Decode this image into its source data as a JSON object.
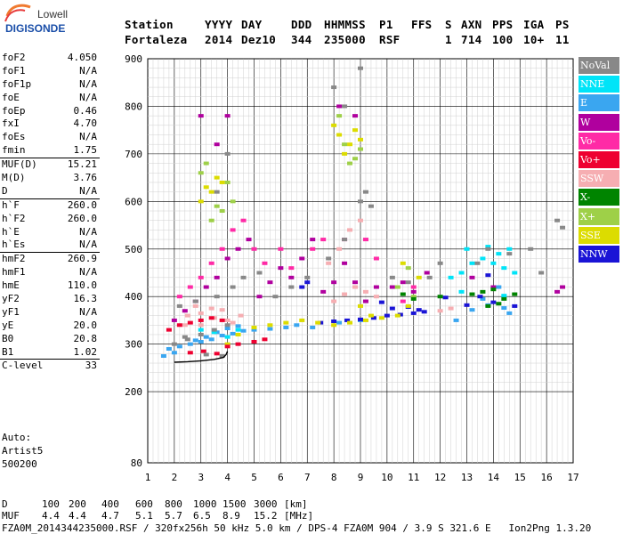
{
  "logo": {
    "brand": "Lowell",
    "product": "DIGISONDE"
  },
  "header": {
    "labels": [
      "Station",
      "YYYY",
      "DAY",
      "DDD",
      "HHMMSS",
      "P1",
      "FFS",
      "S",
      "AXN",
      "PPS",
      "IGA",
      "PS"
    ],
    "values": [
      "Fortaleza",
      "2014",
      "Dez10",
      "344",
      "235000",
      "RSF",
      "",
      "1",
      "714",
      "100",
      "10+",
      "11"
    ]
  },
  "parameters": [
    {
      "name": "foF2",
      "value": "4.050"
    },
    {
      "name": "foF1",
      "value": "N/A"
    },
    {
      "name": "foF1p",
      "value": "N/A"
    },
    {
      "name": "foE",
      "value": "N/A"
    },
    {
      "name": "foEp",
      "value": "0.46"
    },
    {
      "name": "fxI",
      "value": "4.70"
    },
    {
      "name": "foEs",
      "value": "N/A"
    },
    {
      "name": "fmin",
      "value": "1.75"
    },
    {
      "name": "MUF(D)",
      "value": "15.21",
      "sep": true
    },
    {
      "name": "M(D)",
      "value": "3.76"
    },
    {
      "name": "D",
      "value": "N/A"
    },
    {
      "name": "h`F",
      "value": "260.0",
      "sep": true
    },
    {
      "name": "h`F2",
      "value": "260.0"
    },
    {
      "name": "h`E",
      "value": "N/A"
    },
    {
      "name": "h`Es",
      "value": "N/A"
    },
    {
      "name": "hmF2",
      "value": "260.9",
      "sep": true
    },
    {
      "name": "hmF1",
      "value": "N/A"
    },
    {
      "name": "hmE",
      "value": "110.0"
    },
    {
      "name": "yF2",
      "value": "16.3"
    },
    {
      "name": "yF1",
      "value": "N/A"
    },
    {
      "name": "yE",
      "value": "20.0"
    },
    {
      "name": "B0",
      "value": "20.8"
    },
    {
      "name": "B1",
      "value": "1.02"
    },
    {
      "name": "C-level",
      "value": "33",
      "sep": true
    }
  ],
  "auto": {
    "label": "Auto:",
    "software": "Artist5",
    "version": "500200"
  },
  "legend": [
    {
      "label": "NoVal",
      "color": "#888888"
    },
    {
      "label": "NNE",
      "color": "#00e4f8"
    },
    {
      "label": "E",
      "color": "#3aa6f0"
    },
    {
      "label": "W",
      "color": "#b0009e"
    },
    {
      "label": "Vo-",
      "color": "#ff2aa6"
    },
    {
      "label": "Vo+",
      "color": "#ee0030"
    },
    {
      "label": "SSW",
      "color": "#f6aeb2"
    },
    {
      "label": "X-",
      "color": "#008400"
    },
    {
      "label": "X+",
      "color": "#9ed048"
    },
    {
      "label": "SSE",
      "color": "#dcdc00"
    },
    {
      "label": "NNW",
      "color": "#1a14d6"
    }
  ],
  "footer": {
    "d_label": "D",
    "d_values": [
      "100",
      "200",
      "400",
      "600",
      "800",
      "1000",
      "1500",
      "3000"
    ],
    "d_unit": "[km]",
    "muf_label": "MUF",
    "muf_values": [
      "4.4",
      "4.4",
      "4.7",
      "5.1",
      "5.7",
      "6.5",
      "8.9",
      "15.2"
    ],
    "muf_unit": "[MHz]",
    "info": "FZA0M_2014344235000.RSF / 320fx256h 50 kHz 5.0 km / DPS-4 FZA0M 904 / 3.9 S 321.6 E   Ion2Png 1.3.20"
  },
  "chart_data": {
    "type": "scatter",
    "x_ticks": [
      1,
      2,
      3,
      4,
      5,
      6,
      7,
      8,
      9,
      10,
      11,
      12,
      13,
      14,
      15,
      16,
      17
    ],
    "y_ticks": [
      80,
      200,
      300,
      400,
      500,
      600,
      700,
      800,
      900
    ],
    "xlim": [
      1,
      17
    ],
    "y_scale": [
      [
        80,
        0
      ],
      [
        200,
        0.176
      ],
      [
        900,
        1
      ]
    ],
    "grid": true,
    "trace": {
      "freq": [
        2.0,
        2.5,
        3.0,
        3.5,
        3.85,
        3.95,
        4.0
      ],
      "height": [
        262,
        263,
        265,
        268,
        272,
        278,
        285
      ]
    },
    "series": [
      {
        "class": "E",
        "points": [
          [
            1.8,
            290
          ],
          [
            2.2,
            295
          ],
          [
            2.6,
            300
          ],
          [
            3.0,
            305
          ],
          [
            3.4,
            310
          ],
          [
            3.8,
            318
          ],
          [
            4.2,
            322
          ],
          [
            4.6,
            328
          ],
          [
            5.0,
            330
          ],
          [
            5.6,
            332
          ],
          [
            6.2,
            335
          ],
          [
            6.6,
            340
          ],
          [
            1.6,
            275
          ],
          [
            2.0,
            282
          ],
          [
            2.8,
            308
          ],
          [
            3.2,
            315
          ],
          [
            3.6,
            325
          ],
          [
            4.0,
            333
          ],
          [
            4.4,
            338
          ],
          [
            12.6,
            350
          ],
          [
            13.2,
            372
          ],
          [
            13.8,
            382
          ],
          [
            14.4,
            376
          ],
          [
            14.6,
            365
          ],
          [
            13.6,
            395
          ],
          [
            14.2,
            420
          ],
          [
            7.2,
            335
          ],
          [
            8.2,
            345
          ],
          [
            9.0,
            350
          ]
        ]
      },
      {
        "class": "NNW",
        "points": [
          [
            8.5,
            350
          ],
          [
            9.0,
            352
          ],
          [
            9.5,
            355
          ],
          [
            10.0,
            360
          ],
          [
            10.5,
            362
          ],
          [
            11.0,
            365
          ],
          [
            11.4,
            368
          ],
          [
            10.2,
            375
          ],
          [
            10.8,
            378
          ],
          [
            11.2,
            372
          ],
          [
            8.0,
            348
          ],
          [
            7.5,
            345
          ],
          [
            13.0,
            382
          ],
          [
            13.5,
            400
          ],
          [
            14.0,
            388
          ],
          [
            14.8,
            380
          ],
          [
            6.8,
            420
          ],
          [
            7.0,
            430
          ],
          [
            9.8,
            388
          ],
          [
            12.2,
            398
          ],
          [
            13.8,
            445
          ]
        ]
      },
      {
        "class": "SSE",
        "points": [
          [
            5.6,
            340
          ],
          [
            6.2,
            345
          ],
          [
            6.8,
            350
          ],
          [
            7.4,
            345
          ],
          [
            8.0,
            340
          ],
          [
            8.6,
            345
          ],
          [
            9.2,
            350
          ],
          [
            9.8,
            355
          ],
          [
            10.4,
            360
          ],
          [
            10.8,
            380
          ],
          [
            11.2,
            440
          ],
          [
            10.6,
            470
          ],
          [
            3.2,
            630
          ],
          [
            3.6,
            650
          ],
          [
            3.8,
            640
          ],
          [
            3.0,
            600
          ],
          [
            3.4,
            620
          ],
          [
            8.0,
            760
          ],
          [
            8.2,
            740
          ],
          [
            8.6,
            720
          ],
          [
            8.8,
            750
          ],
          [
            9.0,
            730
          ],
          [
            8.4,
            700
          ],
          [
            4.0,
            300
          ],
          [
            4.4,
            320
          ],
          [
            5.0,
            335
          ],
          [
            9.4,
            360
          ],
          [
            9.0,
            380
          ]
        ]
      },
      {
        "class": "SSW",
        "points": [
          [
            2.5,
            360
          ],
          [
            3.0,
            365
          ],
          [
            3.5,
            355
          ],
          [
            4.0,
            350
          ],
          [
            4.5,
            360
          ],
          [
            2.8,
            380
          ],
          [
            3.4,
            375
          ],
          [
            3.8,
            372
          ],
          [
            4.2,
            345
          ],
          [
            2.4,
            340
          ],
          [
            3.0,
            340
          ],
          [
            12.0,
            370
          ],
          [
            12.4,
            375
          ],
          [
            8.0,
            390
          ],
          [
            8.4,
            405
          ],
          [
            8.8,
            420
          ],
          [
            9.2,
            410
          ],
          [
            9.6,
            400
          ],
          [
            7.8,
            470
          ],
          [
            8.2,
            500
          ],
          [
            8.6,
            540
          ],
          [
            9.0,
            560
          ]
        ]
      },
      {
        "class": "W",
        "points": [
          [
            2.0,
            350
          ],
          [
            2.4,
            370
          ],
          [
            2.8,
            390
          ],
          [
            3.2,
            420
          ],
          [
            3.6,
            440
          ],
          [
            4.0,
            480
          ],
          [
            4.4,
            500
          ],
          [
            4.8,
            520
          ],
          [
            5.2,
            400
          ],
          [
            5.6,
            430
          ],
          [
            6.0,
            460
          ],
          [
            6.4,
            440
          ],
          [
            6.8,
            480
          ],
          [
            7.2,
            520
          ],
          [
            7.6,
            410
          ],
          [
            8.0,
            430
          ],
          [
            8.4,
            470
          ],
          [
            8.8,
            430
          ],
          [
            9.2,
            390
          ],
          [
            9.6,
            420
          ],
          [
            10.2,
            420
          ],
          [
            10.6,
            430
          ],
          [
            11.0,
            410
          ],
          [
            11.5,
            450
          ],
          [
            13.2,
            440
          ],
          [
            14.0,
            420
          ],
          [
            16.4,
            410
          ],
          [
            16.6,
            420
          ],
          [
            3.0,
            780
          ],
          [
            4.0,
            780
          ],
          [
            3.6,
            720
          ],
          [
            8.2,
            800
          ],
          [
            8.8,
            780
          ]
        ]
      },
      {
        "class": "Vo+",
        "points": [
          [
            1.8,
            330
          ],
          [
            2.2,
            340
          ],
          [
            2.6,
            345
          ],
          [
            3.0,
            350
          ],
          [
            3.4,
            355
          ],
          [
            3.8,
            350
          ],
          [
            4.4,
            300
          ],
          [
            5.0,
            305
          ],
          [
            5.4,
            310
          ],
          [
            2.6,
            282
          ],
          [
            3.1,
            285
          ],
          [
            3.6,
            280
          ],
          [
            4.0,
            295
          ]
        ]
      },
      {
        "class": "Vo-",
        "points": [
          [
            2.2,
            400
          ],
          [
            2.6,
            420
          ],
          [
            3.0,
            440
          ],
          [
            3.4,
            470
          ],
          [
            3.8,
            500
          ],
          [
            4.2,
            540
          ],
          [
            4.6,
            560
          ],
          [
            5.0,
            500
          ],
          [
            5.4,
            470
          ],
          [
            6.0,
            500
          ],
          [
            6.4,
            460
          ],
          [
            7.2,
            500
          ],
          [
            7.6,
            520
          ],
          [
            8.4,
            520
          ],
          [
            9.2,
            520
          ],
          [
            9.6,
            480
          ],
          [
            10.6,
            390
          ],
          [
            11.0,
            420
          ]
        ]
      },
      {
        "class": "NNE",
        "points": [
          [
            12.4,
            440
          ],
          [
            12.8,
            450
          ],
          [
            13.2,
            470
          ],
          [
            13.6,
            480
          ],
          [
            14.0,
            470
          ],
          [
            14.4,
            460
          ],
          [
            14.8,
            450
          ],
          [
            13.0,
            500
          ],
          [
            13.8,
            505
          ],
          [
            14.6,
            500
          ],
          [
            14.2,
            490
          ],
          [
            12.8,
            410
          ],
          [
            14.4,
            402
          ],
          [
            3.0,
            330
          ],
          [
            3.5,
            325
          ],
          [
            4.0,
            315
          ],
          [
            4.4,
            330
          ]
        ]
      },
      {
        "class": "X+",
        "points": [
          [
            3.4,
            560
          ],
          [
            3.8,
            580
          ],
          [
            4.2,
            600
          ],
          [
            3.6,
            590
          ],
          [
            4.0,
            640
          ],
          [
            3.0,
            660
          ],
          [
            3.2,
            680
          ],
          [
            8.6,
            680
          ],
          [
            8.8,
            690
          ],
          [
            9.0,
            710
          ],
          [
            8.4,
            720
          ],
          [
            8.2,
            780
          ],
          [
            10.4,
            420
          ],
          [
            10.8,
            460
          ],
          [
            11.0,
            400
          ]
        ]
      },
      {
        "class": "X-",
        "points": [
          [
            13.2,
            405
          ],
          [
            13.6,
            410
          ],
          [
            14.0,
            415
          ],
          [
            14.4,
            395
          ],
          [
            14.8,
            405
          ],
          [
            13.8,
            380
          ],
          [
            14.2,
            385
          ],
          [
            10.6,
            405
          ],
          [
            11.0,
            395
          ],
          [
            12.0,
            400
          ]
        ]
      },
      {
        "class": "NoVal",
        "points": [
          [
            2.0,
            300
          ],
          [
            2.5,
            310
          ],
          [
            3.0,
            320
          ],
          [
            3.5,
            330
          ],
          [
            4.0,
            340
          ],
          [
            2.2,
            380
          ],
          [
            2.8,
            390
          ],
          [
            3.6,
            400
          ],
          [
            4.2,
            420
          ],
          [
            4.6,
            440
          ],
          [
            5.2,
            450
          ],
          [
            5.8,
            400
          ],
          [
            6.4,
            420
          ],
          [
            7.0,
            440
          ],
          [
            7.8,
            480
          ],
          [
            8.4,
            520
          ],
          [
            9.0,
            600
          ],
          [
            9.2,
            620
          ],
          [
            9.4,
            590
          ],
          [
            10.2,
            440
          ],
          [
            10.8,
            430
          ],
          [
            11.6,
            440
          ],
          [
            12.0,
            470
          ],
          [
            13.4,
            470
          ],
          [
            13.8,
            500
          ],
          [
            14.6,
            490
          ],
          [
            15.4,
            500
          ],
          [
            15.8,
            450
          ],
          [
            16.4,
            560
          ],
          [
            16.6,
            545
          ],
          [
            3.6,
            620
          ],
          [
            4.0,
            700
          ],
          [
            8.4,
            800
          ],
          [
            8.0,
            840
          ],
          [
            9.0,
            880
          ],
          [
            2.4,
            315
          ],
          [
            3.2,
            278
          ],
          [
            3.8,
            275
          ]
        ]
      }
    ]
  }
}
